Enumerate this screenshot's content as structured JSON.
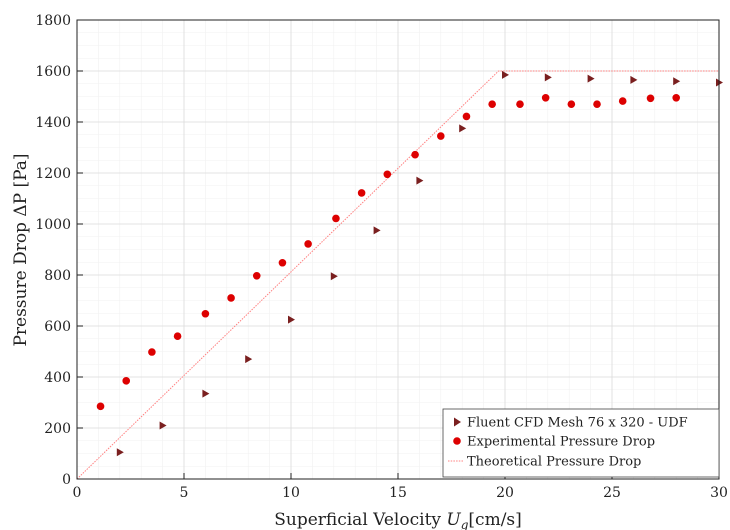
{
  "chart_data": {
    "type": "scatter",
    "xlabel": "Superficial Velocity U_g[cm/s]",
    "xlabel_main": "Superficial Velocity ",
    "xlabel_var": "U",
    "xlabel_sub": "g",
    "xlabel_unit": "[cm/s]",
    "ylabel": "Pressure Drop ΔP [Pa]",
    "xlim": [
      0,
      30
    ],
    "ylim": [
      0,
      1800
    ],
    "xticks": [
      0,
      5,
      10,
      15,
      20,
      25,
      30
    ],
    "yticks": [
      0,
      200,
      400,
      600,
      800,
      1000,
      1200,
      1400,
      1600,
      1800
    ],
    "grid": true,
    "legend_position": "bottom-right",
    "series": [
      {
        "name": "Fluent CFD Mesh 76 x 320 - UDF",
        "marker": "triangle-right",
        "color": "#7a1f1f",
        "points": [
          [
            2,
            105
          ],
          [
            4,
            210
          ],
          [
            6,
            335
          ],
          [
            8,
            470
          ],
          [
            10,
            625
          ],
          [
            12,
            795
          ],
          [
            14,
            975
          ],
          [
            16,
            1170
          ],
          [
            18,
            1375
          ],
          [
            20,
            1585
          ],
          [
            22,
            1575
          ],
          [
            24,
            1570
          ],
          [
            26,
            1565
          ],
          [
            28,
            1560
          ],
          [
            30,
            1555
          ]
        ]
      },
      {
        "name": "Experimental Pressure Drop",
        "marker": "circle",
        "color": "#dd0000",
        "points": [
          [
            1.1,
            285
          ],
          [
            2.3,
            385
          ],
          [
            3.5,
            498
          ],
          [
            4.7,
            560
          ],
          [
            6.0,
            648
          ],
          [
            7.2,
            710
          ],
          [
            8.4,
            797
          ],
          [
            9.6,
            848
          ],
          [
            10.8,
            922
          ],
          [
            12.1,
            1022
          ],
          [
            13.3,
            1122
          ],
          [
            14.5,
            1195
          ],
          [
            15.8,
            1272
          ],
          [
            17.0,
            1345
          ],
          [
            18.2,
            1422
          ],
          [
            19.4,
            1470
          ],
          [
            20.7,
            1470
          ],
          [
            21.9,
            1495
          ],
          [
            23.1,
            1470
          ],
          [
            24.3,
            1470
          ],
          [
            25.5,
            1482
          ],
          [
            26.8,
            1493
          ],
          [
            28.0,
            1495
          ]
        ]
      },
      {
        "name": "Theoretical Pressure Drop",
        "marker": "line",
        "color": "#ff8080",
        "points": [
          [
            0,
            0
          ],
          [
            19.7,
            1600
          ],
          [
            30,
            1600
          ]
        ]
      }
    ]
  }
}
